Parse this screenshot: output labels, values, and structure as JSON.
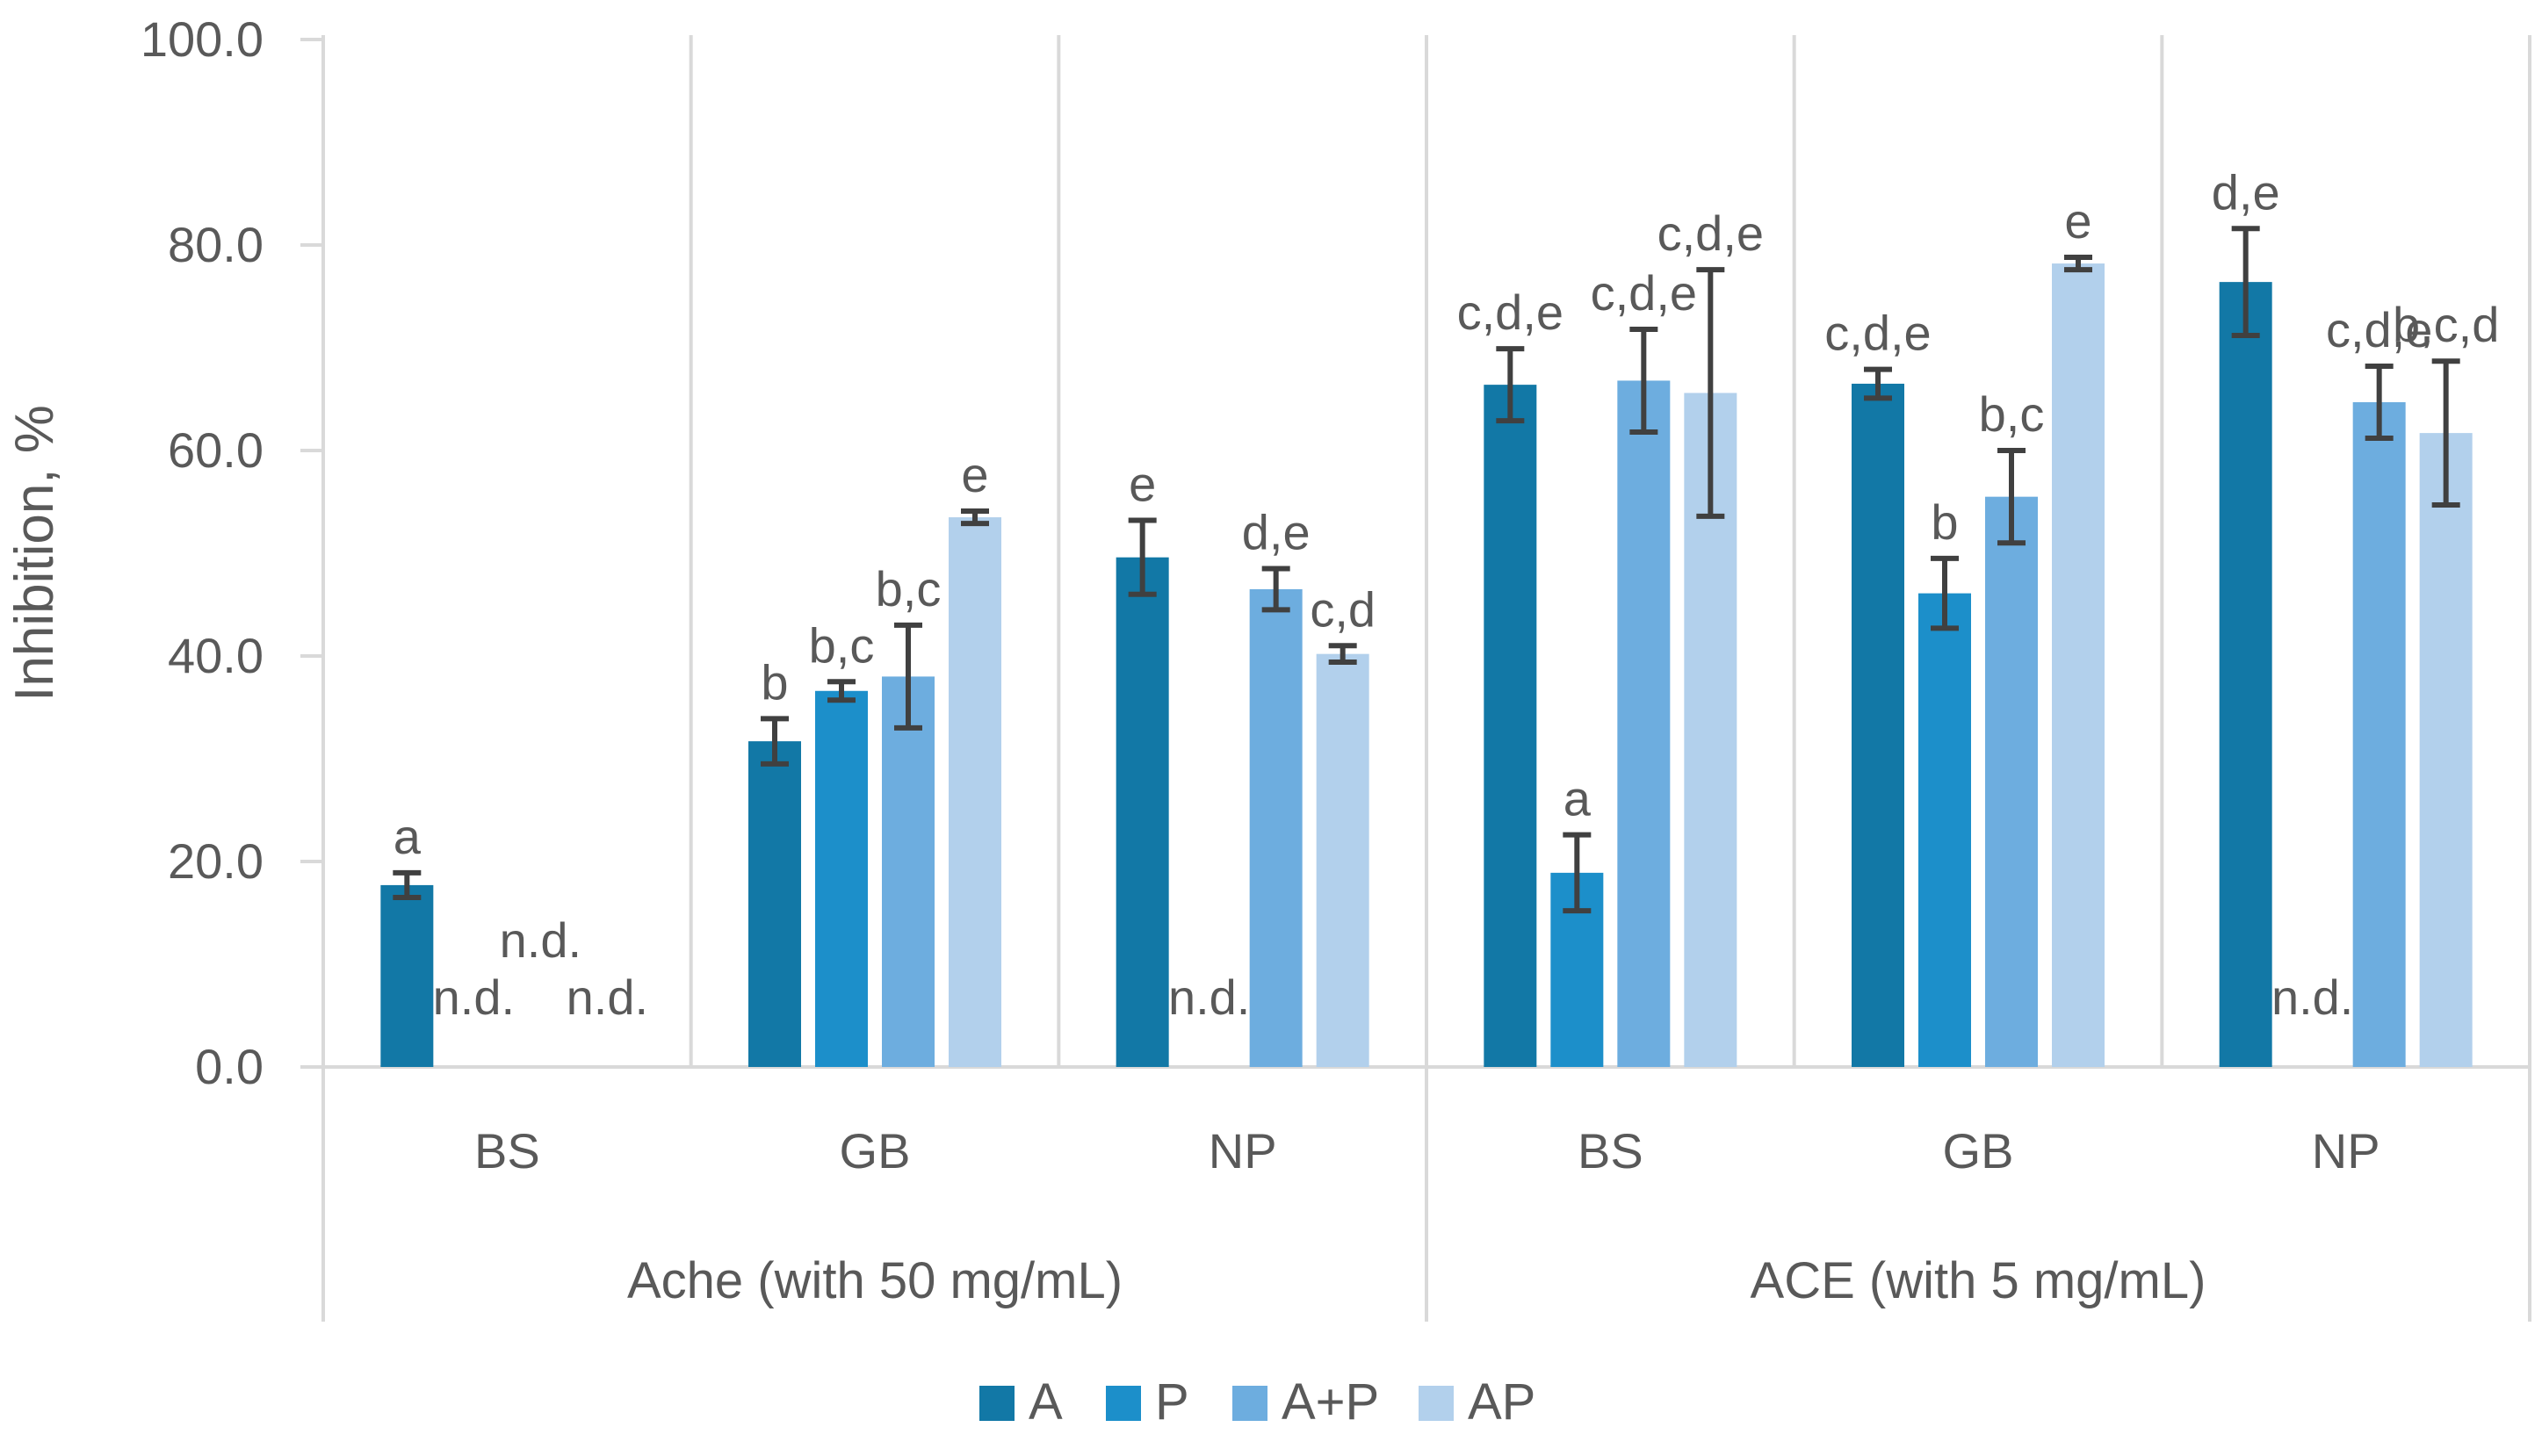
{
  "chart_data": {
    "type": "bar",
    "ylabel": "Inhibition, %",
    "ylim": [
      0,
      100
    ],
    "yticks": [
      "0.0",
      "20.0",
      "40.0",
      "60.0",
      "80.0",
      "100.0"
    ],
    "grid": false,
    "legend_position": "bottom",
    "colors": {
      "A": "#1278a6",
      "P": "#1c8fca",
      "A+P": "#6daddf",
      "AP": "#b2d0ec",
      "axis": "#d9d9d9",
      "error": "#404040"
    },
    "groups": [
      {
        "label": "Ache (with 50 mg/mL)",
        "categories": [
          "BS",
          "GB",
          "NP"
        ]
      },
      {
        "label": "ACE (with 5 mg/mL)",
        "categories": [
          "BS",
          "GB",
          "NP"
        ]
      }
    ],
    "series": [
      {
        "name": "A",
        "values": [
          17.7,
          31.7,
          49.6,
          66.4,
          66.5,
          76.4
        ],
        "errors": [
          1.2,
          2.2,
          3.6,
          3.5,
          1.4,
          5.2
        ],
        "labels": [
          "a",
          "b",
          "e",
          "c,d,e",
          "c,d,e",
          "d,e"
        ]
      },
      {
        "name": "P",
        "values": [
          null,
          36.6,
          null,
          18.9,
          46.1,
          null
        ],
        "errors": [
          0,
          0.9,
          0,
          3.7,
          3.4,
          0
        ],
        "labels": [
          "n.d.",
          "b,c",
          "n.d.",
          "a",
          "b",
          "n.d."
        ]
      },
      {
        "name": "A+P",
        "values": [
          null,
          38.0,
          46.5,
          66.8,
          55.5,
          64.7
        ],
        "errors": [
          0,
          5.0,
          2.0,
          5.0,
          4.5,
          3.5
        ],
        "labels": [
          "n.d.",
          "b,c",
          "d,e",
          "c,d,e",
          "b,c",
          "c,d,e"
        ]
      },
      {
        "name": "AP",
        "values": [
          null,
          53.5,
          40.2,
          65.6,
          78.2,
          61.7
        ],
        "errors": [
          0,
          0.6,
          0.8,
          12.0,
          0.6,
          7.0
        ],
        "labels": [
          "n.d.",
          "e",
          "c,d",
          "c,d,e",
          "e",
          "b,c,d"
        ]
      }
    ]
  }
}
